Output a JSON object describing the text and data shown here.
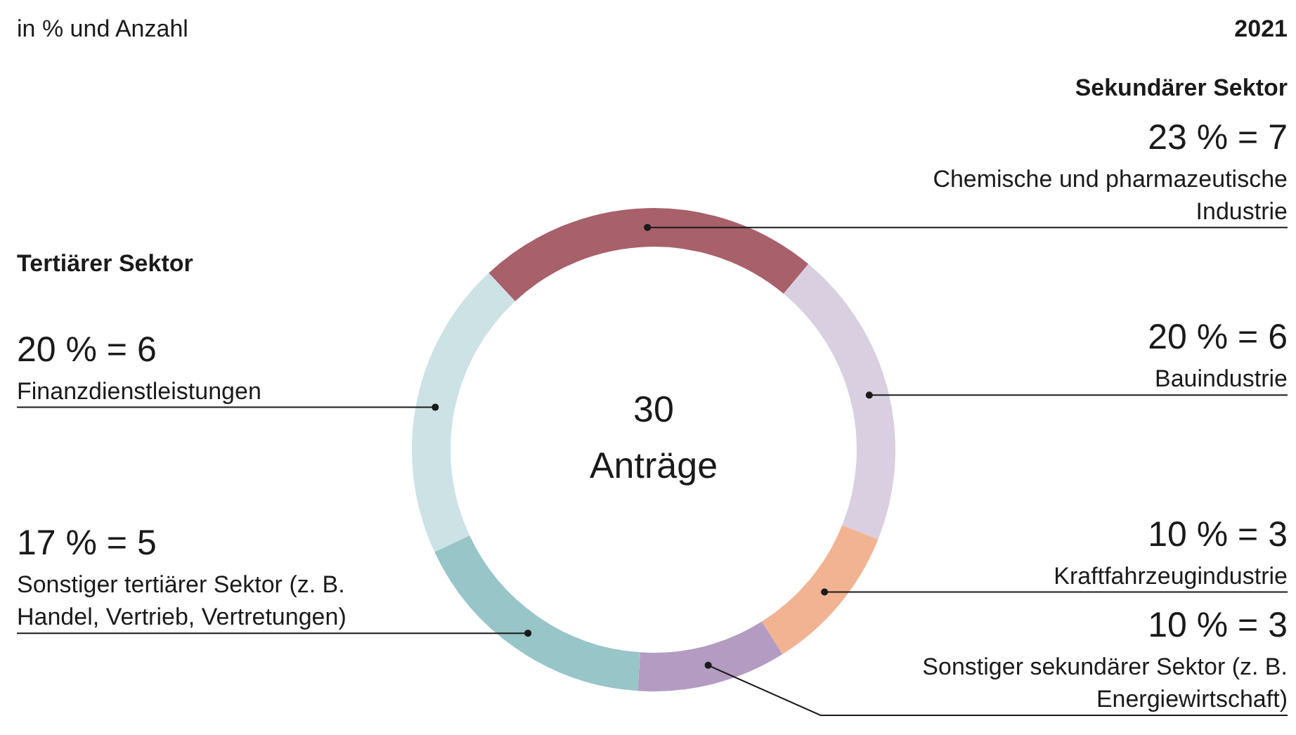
{
  "chart_data": {
    "type": "donut",
    "title": "2021",
    "subtitle": "in % und Anzahl",
    "categories": [
      "Chemische und pharmazeutische Industrie",
      "Bauindustrie",
      "Kraftfahrzeugindustrie",
      "Sonstiger sekundärer Sektor (z. B. Energiewirtschaft)",
      "Sonstiger tertiärer Sektor (z. B. Handel, Vertrieb, Vertretungen)",
      "Finanzdienstleistungen"
    ],
    "values": [
      23,
      20,
      10,
      10,
      17,
      20
    ],
    "value_labels": [
      "23 % = 7",
      "20 % = 6",
      "10 % = 3",
      "10 % = 3",
      "17 % = 5",
      "20 % = 6"
    ],
    "colors": [
      "#a8606a",
      "#d9cfe0",
      "#f2b393",
      "#b39bc2",
      "#97c5c8",
      "#cce2e5"
    ],
    "annotations": [
      "Sekundärer Sektor",
      "Tertiärer Sektor",
      "30 Anträge"
    ],
    "legend": false
  }
}
